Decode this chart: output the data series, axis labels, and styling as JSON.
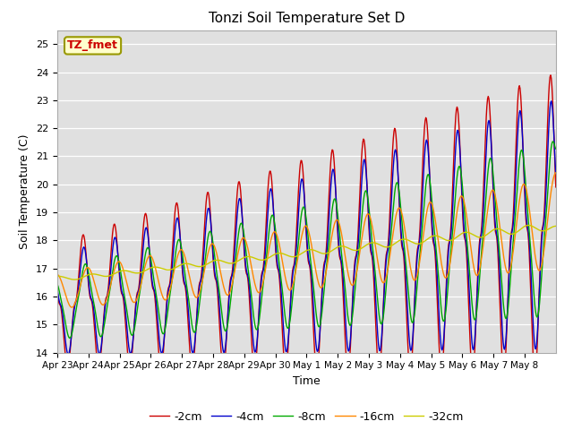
{
  "title": "Tonzi Soil Temperature Set D",
  "xlabel": "Time",
  "ylabel": "Soil Temperature (C)",
  "ylim": [
    14.0,
    25.5
  ],
  "yticks": [
    14.0,
    15.0,
    16.0,
    17.0,
    18.0,
    19.0,
    20.0,
    21.0,
    22.0,
    23.0,
    24.0,
    25.0
  ],
  "legend_label": "TZ_fmet",
  "series_labels": [
    "-2cm",
    "-4cm",
    "-8cm",
    "-16cm",
    "-32cm"
  ],
  "series_colors": [
    "#cc0000",
    "#0000cc",
    "#00aa00",
    "#ff8800",
    "#cccc00"
  ],
  "plot_bg_color": "#e0e0e0",
  "n_days": 16,
  "xtick_labels": [
    "Apr 23",
    "Apr 24",
    "Apr 25",
    "Apr 26",
    "Apr 27",
    "Apr 28",
    "Apr 29",
    "Apr 30",
    "May 1",
    "May 2",
    "May 3",
    "May 4",
    "May 5",
    "May 6",
    "May 7",
    "May 8"
  ],
  "points_per_day": 48
}
